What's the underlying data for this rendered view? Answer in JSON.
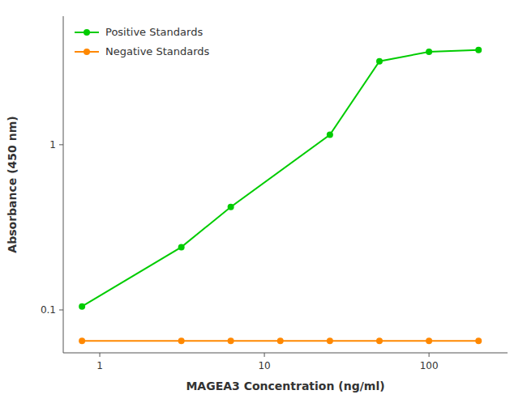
{
  "chart_data": {
    "type": "line",
    "log": true,
    "xlabel": "MAGEA3 Concentration (ng/ml)",
    "ylabel": "Absorbance (450 nm)",
    "series": [
      {
        "name": "Positive Standards",
        "color": "#00cc00",
        "marker": "circle",
        "x": [
          0.78,
          3.13,
          6.25,
          25,
          50,
          100,
          200
        ],
        "values": [
          0.105,
          0.24,
          0.42,
          1.15,
          3.2,
          3.65,
          3.75
        ]
      },
      {
        "name": "Negative Standards",
        "color": "#ff8800",
        "marker": "circle",
        "x": [
          0.78,
          3.13,
          6.25,
          12.5,
          25,
          50,
          100,
          200
        ],
        "values": [
          0.065,
          0.065,
          0.065,
          0.065,
          0.065,
          0.065,
          0.065,
          0.065
        ]
      }
    ],
    "xlim": [
      0.6,
      300
    ],
    "ylim": [
      0.055,
      6.0
    ],
    "xticks": [
      1,
      10,
      100
    ],
    "yticks": [
      0.1,
      1
    ],
    "grid": false,
    "legend": "upper left"
  }
}
